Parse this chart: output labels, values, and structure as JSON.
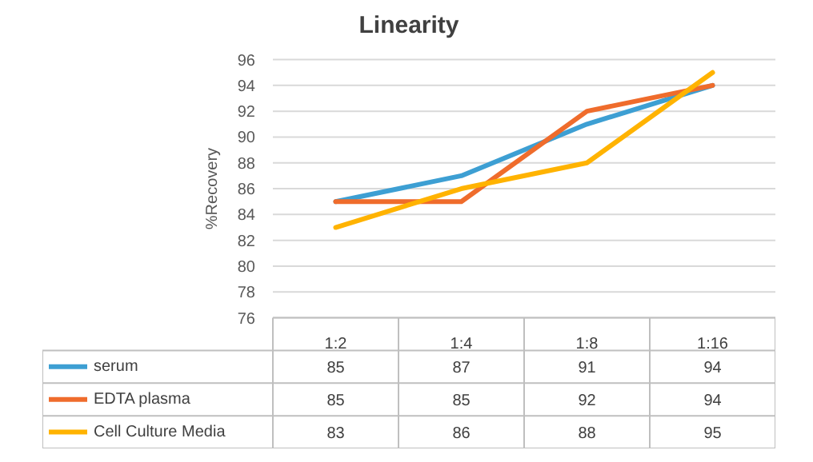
{
  "chart_data": {
    "type": "line",
    "title": "Linearity",
    "ylabel": "%Recovery",
    "categories": [
      "1:2",
      "1:4",
      "1:8",
      "1:16"
    ],
    "series": [
      {
        "name": "serum",
        "color": "#3d9fd3",
        "values": [
          85,
          87,
          91,
          94
        ]
      },
      {
        "name": "EDTA plasma",
        "color": "#ef6c2c",
        "values": [
          85,
          85,
          92,
          94
        ]
      },
      {
        "name": "Cell Culture Media",
        "color": "#ffb300",
        "values": [
          83,
          86,
          88,
          95
        ]
      }
    ],
    "ylim": [
      76,
      96
    ],
    "yticks": [
      76,
      78,
      80,
      82,
      84,
      86,
      88,
      90,
      92,
      94,
      96
    ],
    "grid": "y",
    "legend": "bottom",
    "data_labels": true
  }
}
